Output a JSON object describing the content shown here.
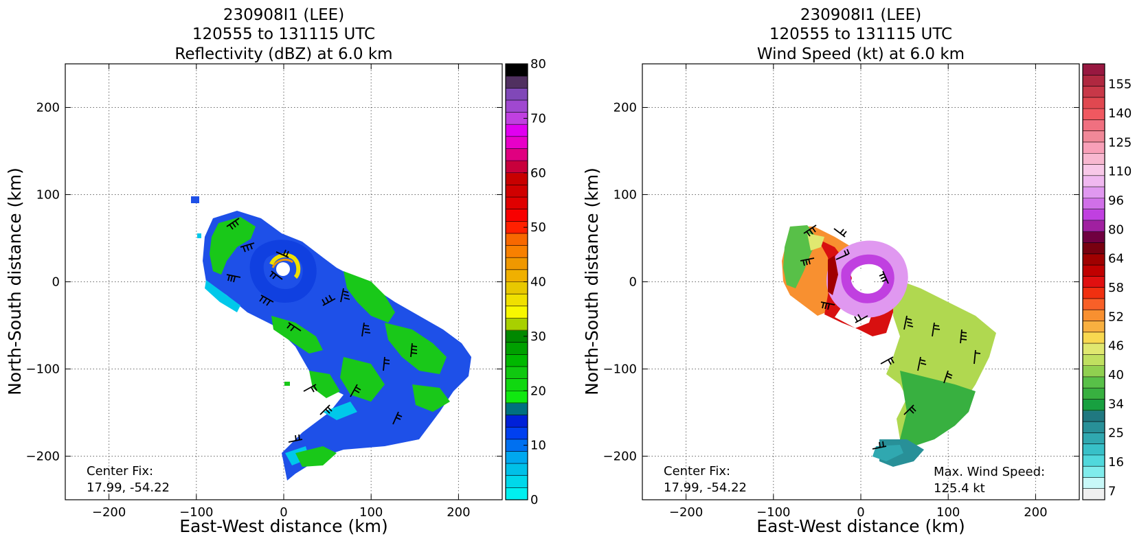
{
  "chart_data": [
    {
      "type": "heatmap",
      "title_lines": [
        "230908I1 (LEE)",
        "120555 to 131115 UTC",
        "Reflectivity (dBZ) at 6.0 km"
      ],
      "xlabel": "East-West distance (km)",
      "ylabel": "North-South distance (km)",
      "xlim": [
        -250,
        250
      ],
      "ylim": [
        -250,
        250
      ],
      "xticks": [
        -200,
        -100,
        0,
        100,
        200
      ],
      "yticks": [
        -200,
        -100,
        0,
        100,
        200
      ],
      "xtick_labels": [
        "−200",
        "−100",
        "0",
        "100",
        "200"
      ],
      "ytick_labels": [
        "−200",
        "−100",
        "0",
        "100",
        "200"
      ],
      "grid": true,
      "colorbar": {
        "min": 0,
        "max": 80,
        "colors": [
          "#00f0f0",
          "#00d8ea",
          "#00c0e8",
          "#00a8ef",
          "#0070f0",
          "#0040f0",
          "#0020d8",
          "#007080",
          "#10e810",
          "#10d810",
          "#10c810",
          "#00b800",
          "#00a000",
          "#008800",
          "#a8d000",
          "#f8f800",
          "#f0e000",
          "#e8c800",
          "#f0b000",
          "#f09800",
          "#f88000",
          "#f86800",
          "#ff2000",
          "#f80000",
          "#e00000",
          "#d00000",
          "#c80000",
          "#c8003c",
          "#e00080",
          "#e800c8",
          "#e000f0",
          "#c040e0",
          "#a048d0",
          "#8048b8",
          "#503060",
          "#000000"
        ],
        "tick_values": [
          0,
          10,
          20,
          30,
          40,
          50,
          60,
          70,
          80
        ],
        "tick_labels": [
          "0",
          "10",
          "20",
          "30",
          "40",
          "50",
          "60",
          "70",
          "80"
        ]
      },
      "annotations": [
        {
          "lines": [
            "Center Fix:",
            "17.99, -54.22"
          ],
          "position": "bottom-left"
        }
      ]
    },
    {
      "type": "heatmap",
      "title_lines": [
        "230908I1 (LEE)",
        "120555 to 131115 UTC",
        "Wind Speed (kt) at 6.0 km"
      ],
      "xlabel": "East-West distance (km)",
      "ylabel": "North-South distance (km)",
      "xlim": [
        -250,
        250
      ],
      "ylim": [
        -250,
        250
      ],
      "xticks": [
        -200,
        -100,
        0,
        100,
        200
      ],
      "yticks": [
        -200,
        -100,
        0,
        100,
        200
      ],
      "xtick_labels": [
        "−200",
        "−100",
        "0",
        "100",
        "200"
      ],
      "ytick_labels": [
        "−200",
        "−100",
        "0",
        "100",
        "200"
      ],
      "grid": true,
      "colorbar": {
        "colors": [
          "#f0f0f0",
          "#c8f8f8",
          "#80ecec",
          "#50d8dc",
          "#38c0c8",
          "#30a8b0",
          "#289098",
          "#207880",
          "#18a040",
          "#38b040",
          "#58c048",
          "#90d050",
          "#c0e060",
          "#e0e870",
          "#f8d850",
          "#f8b040",
          "#f89030",
          "#f86028",
          "#f03010",
          "#e01010",
          "#c00000",
          "#a00000",
          "#780010",
          "#700040",
          "#a020a0",
          "#c040e0",
          "#d070e8",
          "#e098f0",
          "#f0b8f0",
          "#f8c8e8",
          "#f8b8d0",
          "#f8a0b8",
          "#f08898",
          "#f07080",
          "#f05860",
          "#e04850",
          "#c83848",
          "#b02840",
          "#981840"
        ],
        "tick_labels": [
          "7",
          "16",
          "25",
          "34",
          "40",
          "46",
          "52",
          "58",
          "64",
          "80",
          "96",
          "110",
          "125",
          "140",
          "155"
        ]
      },
      "annotations": [
        {
          "lines": [
            "Center Fix:",
            "17.99, -54.22"
          ],
          "position": "bottom-left"
        },
        {
          "lines": [
            "Max. Wind Speed:",
            "125.4 kt"
          ],
          "position": "bottom-right"
        }
      ]
    }
  ]
}
